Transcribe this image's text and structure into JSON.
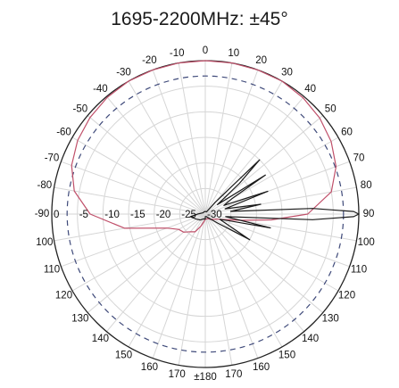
{
  "chart_data": {
    "type": "polar",
    "title": "1695-2200MHz: ±45°",
    "angle_ticks": [
      "0",
      "10",
      "20",
      "30",
      "40",
      "50",
      "60",
      "70",
      "80",
      "90",
      "100",
      "110",
      "120",
      "130",
      "140",
      "150",
      "160",
      "170",
      "±180",
      "170",
      "160",
      "150",
      "140",
      "130",
      "120",
      "110",
      "100",
      "-90",
      "-80",
      "-70",
      "-60",
      "-50",
      "-40",
      "-30",
      "-20",
      "-10"
    ],
    "radial_ticks": [
      "0",
      "-5",
      "-10",
      "-15",
      "-20",
      "-25",
      "-30"
    ],
    "radial_range_db": [
      -30,
      0
    ],
    "reference_level_db": -3,
    "grid": true,
    "series": [
      {
        "color": "#c0506a",
        "points": [
          [
            -180,
            -29
          ],
          [
            -170,
            -28.5
          ],
          [
            -160,
            -27.5
          ],
          [
            -150,
            -26
          ],
          [
            -140,
            -25.5
          ],
          [
            -130,
            -24.5
          ],
          [
            -120,
            -24
          ],
          [
            -110,
            -22
          ],
          [
            -100,
            -14
          ],
          [
            -90,
            -7.5
          ],
          [
            -80,
            -4
          ],
          [
            -70,
            -2.2
          ],
          [
            -60,
            -1.2
          ],
          [
            -50,
            -0.6
          ],
          [
            -40,
            -0.2
          ],
          [
            -30,
            0
          ],
          [
            -20,
            0
          ],
          [
            -10,
            0
          ],
          [
            0,
            0
          ],
          [
            10,
            0
          ],
          [
            20,
            0
          ],
          [
            30,
            0
          ],
          [
            40,
            -0.3
          ],
          [
            50,
            -0.8
          ],
          [
            60,
            -1.6
          ],
          [
            70,
            -2.8
          ],
          [
            80,
            -5
          ],
          [
            90,
            -10
          ],
          [
            95,
            -17
          ],
          [
            100,
            -23
          ],
          [
            110,
            -27
          ],
          [
            120,
            -28
          ],
          [
            135,
            -28.5
          ],
          [
            150,
            -29
          ],
          [
            165,
            -29
          ],
          [
            180,
            -29
          ]
        ]
      },
      {
        "color": "#1a1a1a",
        "points": [
          [
            -180,
            -29
          ],
          [
            -160,
            -29
          ],
          [
            -140,
            -28.5
          ],
          [
            -120,
            -28
          ],
          [
            -100,
            -27
          ],
          [
            -90,
            -28.5
          ],
          [
            -60,
            -29.5
          ],
          [
            -30,
            -29.5
          ],
          [
            0,
            -29.5
          ],
          [
            30,
            -29.5
          ],
          [
            40,
            -27
          ],
          [
            45,
            -15
          ],
          [
            48,
            -21
          ],
          [
            52,
            -27
          ],
          [
            57,
            -16
          ],
          [
            60,
            -24
          ],
          [
            65,
            -26
          ],
          [
            70,
            -17
          ],
          [
            75,
            -26
          ],
          [
            80,
            -19
          ],
          [
            84,
            -25
          ],
          [
            87,
            -9
          ],
          [
            89,
            -1
          ],
          [
            90,
            0
          ],
          [
            91,
            -1
          ],
          [
            93,
            -9
          ],
          [
            97,
            -26
          ],
          [
            102,
            -17
          ],
          [
            107,
            -26
          ],
          [
            110,
            -27
          ],
          [
            120,
            -20
          ],
          [
            126,
            -27
          ],
          [
            140,
            -29
          ],
          [
            160,
            -29.5
          ],
          [
            180,
            -29.5
          ]
        ]
      }
    ]
  }
}
